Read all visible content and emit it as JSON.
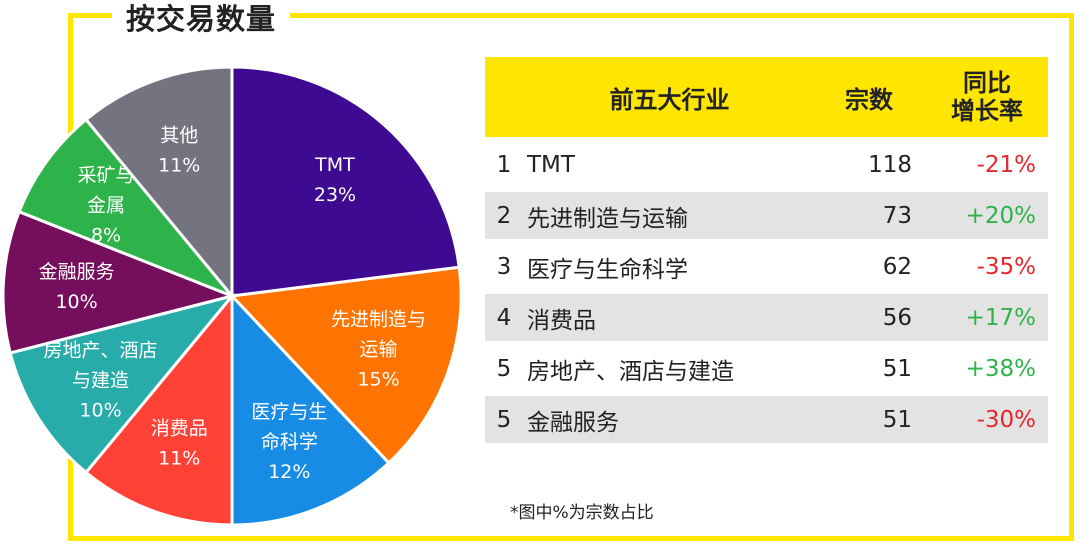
{
  "title": "按交易数量",
  "chart_data": {
    "type": "pie",
    "slices": [
      {
        "name": "TMT",
        "lines": [
          "TMT"
        ],
        "value": 23,
        "pct": "23%",
        "color": "#3d0a91"
      },
      {
        "name": "先进制造与运输",
        "lines": [
          "先进制造与",
          "运输"
        ],
        "value": 15,
        "pct": "15%",
        "color": "#ff7300"
      },
      {
        "name": "医疗与生命科学",
        "lines": [
          "医疗与生",
          "命科学"
        ],
        "value": 12,
        "pct": "12%",
        "color": "#188ce5"
      },
      {
        "name": "消费品",
        "lines": [
          "消费品"
        ],
        "value": 11,
        "pct": "11%",
        "color": "#ff4136"
      },
      {
        "name": "房地产、酒店与建造",
        "lines": [
          "房地产、酒店",
          "与建造"
        ],
        "value": 10,
        "pct": "10%",
        "color": "#27acaa"
      },
      {
        "name": "金融服务",
        "lines": [
          "金融服务"
        ],
        "value": 10,
        "pct": "10%",
        "color": "#750e5c"
      },
      {
        "name": "采矿与金属",
        "lines": [
          "采矿与",
          "金属"
        ],
        "value": 8,
        "pct": "8%",
        "color": "#2db34a"
      },
      {
        "name": "其他",
        "lines": [
          "其他"
        ],
        "value": 11,
        "pct": "11%",
        "color": "#747480"
      }
    ]
  },
  "table": {
    "headers": {
      "industry": "前五大行业",
      "count": "宗数",
      "yoy_line1": "同比",
      "yoy_line2": "增长率"
    },
    "rows": [
      {
        "rank": "1",
        "industry": "TMT",
        "count": "118",
        "yoy": "-21%",
        "trend": "neg"
      },
      {
        "rank": "2",
        "industry": "先进制造与运输",
        "count": "73",
        "yoy": "+20%",
        "trend": "pos"
      },
      {
        "rank": "3",
        "industry": "医疗与生命科学",
        "count": "62",
        "yoy": "-35%",
        "trend": "neg"
      },
      {
        "rank": "4",
        "industry": "消费品",
        "count": "56",
        "yoy": "+17%",
        "trend": "pos"
      },
      {
        "rank": "5",
        "industry": "房地产、酒店与建造",
        "count": "51",
        "yoy": "+38%",
        "trend": "pos"
      },
      {
        "rank": "5",
        "industry": "金融服务",
        "count": "51",
        "yoy": "-30%",
        "trend": "neg"
      }
    ]
  },
  "footnote": "*图中%为宗数占比",
  "colors": {
    "frame": "#ffe600",
    "positive": "#2db34a",
    "negative": "#e8262b",
    "row_alt": "#e3e3e3"
  }
}
